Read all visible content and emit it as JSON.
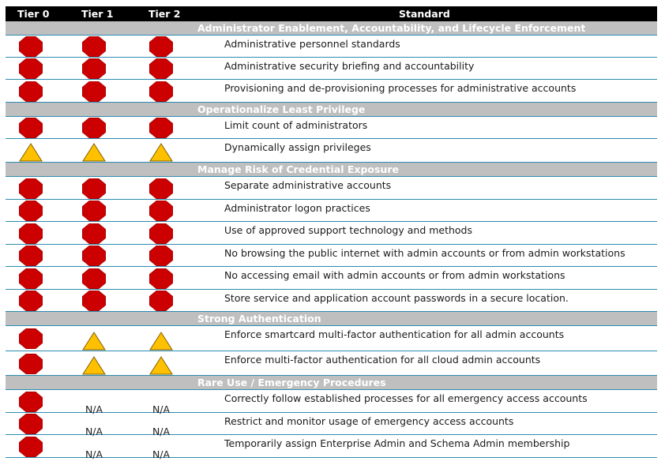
{
  "header": {
    "tier0": "Tier 0",
    "tier1": "Tier 1",
    "tier2": "Tier 2",
    "standard": "Standard"
  },
  "colors": {
    "octagon": "#cc0000",
    "triangle": "#ffc000",
    "rule": "#2e8bb0",
    "section_bg": "#bfbfbf"
  },
  "sections": [
    {
      "title": "Administrator Enablement, Accountability, and Lifecycle Enforcement",
      "rows": [
        {
          "tiers": [
            "stop-octagon-icon",
            "stop-octagon-icon",
            "stop-octagon-icon"
          ],
          "text": "Administrative personnel standards"
        },
        {
          "tiers": [
            "stop-octagon-icon",
            "stop-octagon-icon",
            "stop-octagon-icon"
          ],
          "text": "Administrative security briefing and accountability"
        },
        {
          "tiers": [
            "stop-octagon-icon",
            "stop-octagon-icon",
            "stop-octagon-icon"
          ],
          "text": "Provisioning and de-provisioning processes for administrative accounts"
        }
      ]
    },
    {
      "title": "Operationalize Least Privilege",
      "rows": [
        {
          "tiers": [
            "stop-octagon-icon",
            "stop-octagon-icon",
            "stop-octagon-icon"
          ],
          "text": "Limit count of administrators"
        },
        {
          "tiers": [
            "warning-triangle-icon",
            "warning-triangle-icon",
            "warning-triangle-icon"
          ],
          "text": "Dynamically assign privileges"
        }
      ]
    },
    {
      "title": "Manage Risk of Credential Exposure",
      "rows": [
        {
          "tiers": [
            "stop-octagon-icon",
            "stop-octagon-icon",
            "stop-octagon-icon"
          ],
          "text": "Separate administrative accounts"
        },
        {
          "tiers": [
            "stop-octagon-icon",
            "stop-octagon-icon",
            "stop-octagon-icon"
          ],
          "text": "Administrator logon practices"
        },
        {
          "tiers": [
            "stop-octagon-icon",
            "stop-octagon-icon",
            "stop-octagon-icon"
          ],
          "text": "Use of approved support technology and methods"
        },
        {
          "tiers": [
            "stop-octagon-icon",
            "stop-octagon-icon",
            "stop-octagon-icon"
          ],
          "text": "No browsing the public internet with admin accounts or from admin workstations"
        },
        {
          "tiers": [
            "stop-octagon-icon",
            "stop-octagon-icon",
            "stop-octagon-icon"
          ],
          "text": "No accessing email with admin accounts or from admin workstations"
        },
        {
          "tiers": [
            "stop-octagon-icon",
            "stop-octagon-icon",
            "stop-octagon-icon"
          ],
          "text": "Store service and application account passwords in a secure location."
        }
      ]
    },
    {
      "title": "Strong Authentication",
      "rows": [
        {
          "tiers": [
            "stop-octagon-icon",
            "warning-triangle-icon",
            "warning-triangle-icon"
          ],
          "text": "Enforce smartcard multi-factor authentication for all admin accounts"
        },
        {
          "tiers": [
            "stop-octagon-icon",
            "warning-triangle-icon",
            "warning-triangle-icon"
          ],
          "text": "Enforce multi-factor authentication for all cloud admin accounts"
        }
      ]
    },
    {
      "title": "Rare Use / Emergency Procedures",
      "rows": [
        {
          "tiers": [
            "stop-octagon-icon",
            "N/A",
            "N/A"
          ],
          "text": "Correctly follow established processes for all emergency access accounts"
        },
        {
          "tiers": [
            "stop-octagon-icon",
            "N/A",
            "N/A"
          ],
          "text": "Restrict and monitor usage of emergency access accounts"
        },
        {
          "tiers": [
            "stop-octagon-icon",
            "N/A",
            "N/A"
          ],
          "text": "Temporarily assign Enterprise Admin and Schema Admin membership"
        }
      ]
    }
  ]
}
